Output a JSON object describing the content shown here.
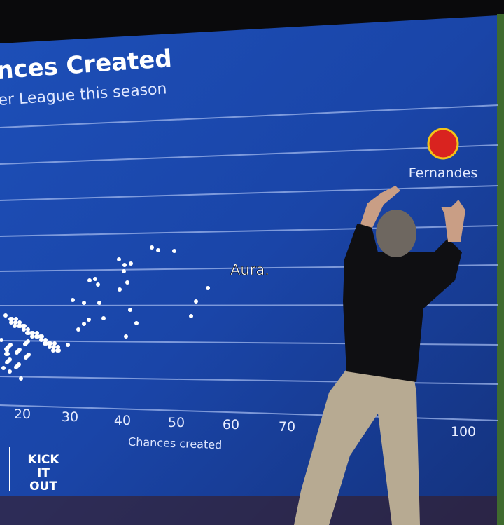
{
  "screen": {
    "title": "nces Created",
    "subtitle": "er League this season",
    "x_axis": {
      "ticks": [
        20,
        30,
        40,
        50,
        60,
        70,
        100
      ],
      "label": "Chances created"
    },
    "player_label": "Fernandes"
  },
  "caption": "Aura.",
  "logo": {
    "lines": [
      "KICK",
      "IT",
      "OUT"
    ]
  }
}
